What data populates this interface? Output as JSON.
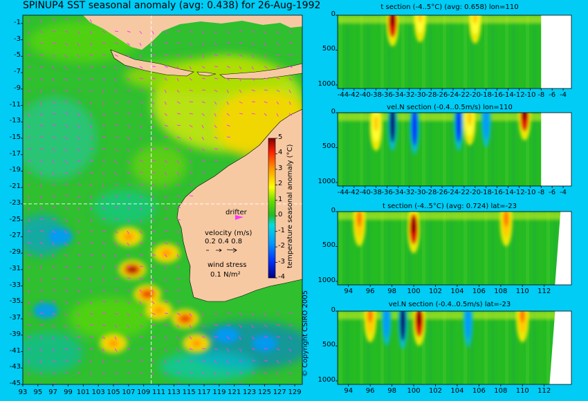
{
  "colors": {
    "background": "#00ccf5",
    "land": "#f7c9a3",
    "missing": "#ffffff",
    "mean_field": "#22bb22",
    "vector": "#ff33ff"
  },
  "copyright": "© Copyright CSIRO 2005",
  "chart_data": [
    {
      "type": "heatmap",
      "title": "SPINUP4 SST seasonal anomaly (avg: 0.438) for 26-Aug-1992",
      "x_ticks": [
        "93",
        "95",
        "97",
        "99",
        "101",
        "103",
        "105",
        "107",
        "109",
        "111",
        "113",
        "115",
        "117",
        "119",
        "121",
        "123",
        "125",
        "127",
        "129"
      ],
      "y_ticks": [
        "-1",
        "-3",
        "-5",
        "-7",
        "-9",
        "-11",
        "-13",
        "-15",
        "-17",
        "-19",
        "-21",
        "-23",
        "-25",
        "-27",
        "-29",
        "-31",
        "-33",
        "-35",
        "-37",
        "-39",
        "-41",
        "-43",
        "-45"
      ],
      "xlim": [
        93,
        130
      ],
      "ylim": [
        -45,
        0
      ],
      "crosshair": {
        "lon": 110,
        "lat": -23
      },
      "colorbar": {
        "label": "temperature seasonal anomaly (°C)",
        "ticks": [
          "5",
          "4",
          "3",
          "2",
          "1",
          "0",
          "-1",
          "-2",
          "-3",
          "-4"
        ],
        "range": [
          -4,
          5
        ]
      },
      "legend": {
        "drifter": "drifter",
        "velocity_label": "velocity (m/s)",
        "velocity_scale": "0.2 0.4 0.8",
        "wind_label": "wind stress",
        "wind_value": "0.1 N/m²"
      },
      "hotspots": [
        {
          "lon": 107.5,
          "lat": -31,
          "v": 5
        },
        {
          "lon": 109.5,
          "lat": -34,
          "v": 3.5
        },
        {
          "lon": 111,
          "lat": -36,
          "v": 3
        },
        {
          "lon": 114.5,
          "lat": -37,
          "v": 4
        },
        {
          "lon": 116,
          "lat": -40,
          "v": 3
        },
        {
          "lon": 107,
          "lat": -27,
          "v": 3
        },
        {
          "lon": 105,
          "lat": -40,
          "v": 2.5
        },
        {
          "lon": 112,
          "lat": -29,
          "v": 3
        }
      ],
      "coldspots": [
        {
          "lon": 98,
          "lat": -27,
          "v": -2
        },
        {
          "lon": 125,
          "lat": -40,
          "v": -2
        },
        {
          "lon": 120,
          "lat": -39,
          "v": -1.5
        },
        {
          "lon": 96,
          "lat": -36,
          "v": -1.5
        }
      ]
    },
    {
      "type": "heatmap",
      "title": "t section (-4..5°C) (avg: 0.658) lon=110",
      "x_ticks": [
        "-44",
        "-42",
        "-40",
        "-38",
        "-36",
        "-34",
        "-32",
        "-30",
        "-28",
        "-26",
        "-24",
        "-22",
        "-20",
        "-18",
        "-16",
        "-14",
        "-12",
        "-10",
        "-8",
        "-6",
        "-4"
      ],
      "y_ticks": [
        "0",
        "500",
        "1000"
      ],
      "xlim": [
        -45,
        -2.5
      ],
      "ylim": [
        0,
        1050
      ],
      "hotspots": [
        {
          "x": -35,
          "y": 100,
          "v": 5
        },
        {
          "x": -20,
          "y": 60,
          "v": 2
        },
        {
          "x": -30,
          "y": 40,
          "v": 1.5
        }
      ],
      "coldspots": [],
      "missing_from": -8
    },
    {
      "type": "heatmap",
      "title": "vel.N section (-0.4..0.5m/s) lon=110",
      "x_ticks": [
        "-44",
        "-42",
        "-40",
        "-38",
        "-36",
        "-34",
        "-32",
        "-30",
        "-28",
        "-26",
        "-24",
        "-22",
        "-20",
        "-18",
        "-16",
        "-14",
        "-12",
        "-10",
        "-8",
        "-6",
        "-4"
      ],
      "y_ticks": [
        "0",
        "500",
        "1000"
      ],
      "xlim": [
        -45,
        -2.5
      ],
      "ylim": [
        0,
        1050
      ],
      "hotspots": [
        {
          "x": -11,
          "y": 50,
          "v": 5
        },
        {
          "x": -21,
          "y": 120,
          "v": 2
        },
        {
          "x": -38,
          "y": 200,
          "v": 1.5
        }
      ],
      "coldspots": [
        {
          "x": -35,
          "y": 150,
          "v": -4
        },
        {
          "x": -31,
          "y": 200,
          "v": -3
        },
        {
          "x": -23,
          "y": 150,
          "v": -2.5
        },
        {
          "x": -18,
          "y": 100,
          "v": -2
        }
      ],
      "missing_from": -8
    },
    {
      "type": "heatmap",
      "title": "t section (-4..5°C) (avg: 0.724) lat=-23",
      "x_ticks": [
        "94",
        "96",
        "98",
        "100",
        "102",
        "104",
        "106",
        "108",
        "110",
        "112"
      ],
      "y_ticks": [
        "0",
        "500",
        "1000"
      ],
      "xlim": [
        93,
        114.5
      ],
      "ylim": [
        0,
        1050
      ],
      "hotspots": [
        {
          "x": 100,
          "y": 250,
          "v": 5
        },
        {
          "x": 108.5,
          "y": 150,
          "v": 3
        },
        {
          "x": 95,
          "y": 150,
          "v": 2.5
        }
      ],
      "coldspots": [],
      "missing_from": 113.5
    },
    {
      "type": "heatmap",
      "title": "vel.N section (-0.4..0.5m/s) lat=-23",
      "x_ticks": [
        "94",
        "96",
        "98",
        "100",
        "102",
        "104",
        "106",
        "108",
        "110",
        "112"
      ],
      "y_ticks": [
        "0",
        "500",
        "1000"
      ],
      "xlim": [
        93,
        114.5
      ],
      "ylim": [
        0,
        1050
      ],
      "hotspots": [
        {
          "x": 100.5,
          "y": 150,
          "v": 5
        },
        {
          "x": 96,
          "y": 100,
          "v": 3
        },
        {
          "x": 110,
          "y": 100,
          "v": 3
        }
      ],
      "coldspots": [
        {
          "x": 99,
          "y": 150,
          "v": -4
        },
        {
          "x": 97.5,
          "y": 100,
          "v": -2
        },
        {
          "x": 105,
          "y": 120,
          "v": -1.5
        }
      ],
      "missing_from": 113
    }
  ]
}
